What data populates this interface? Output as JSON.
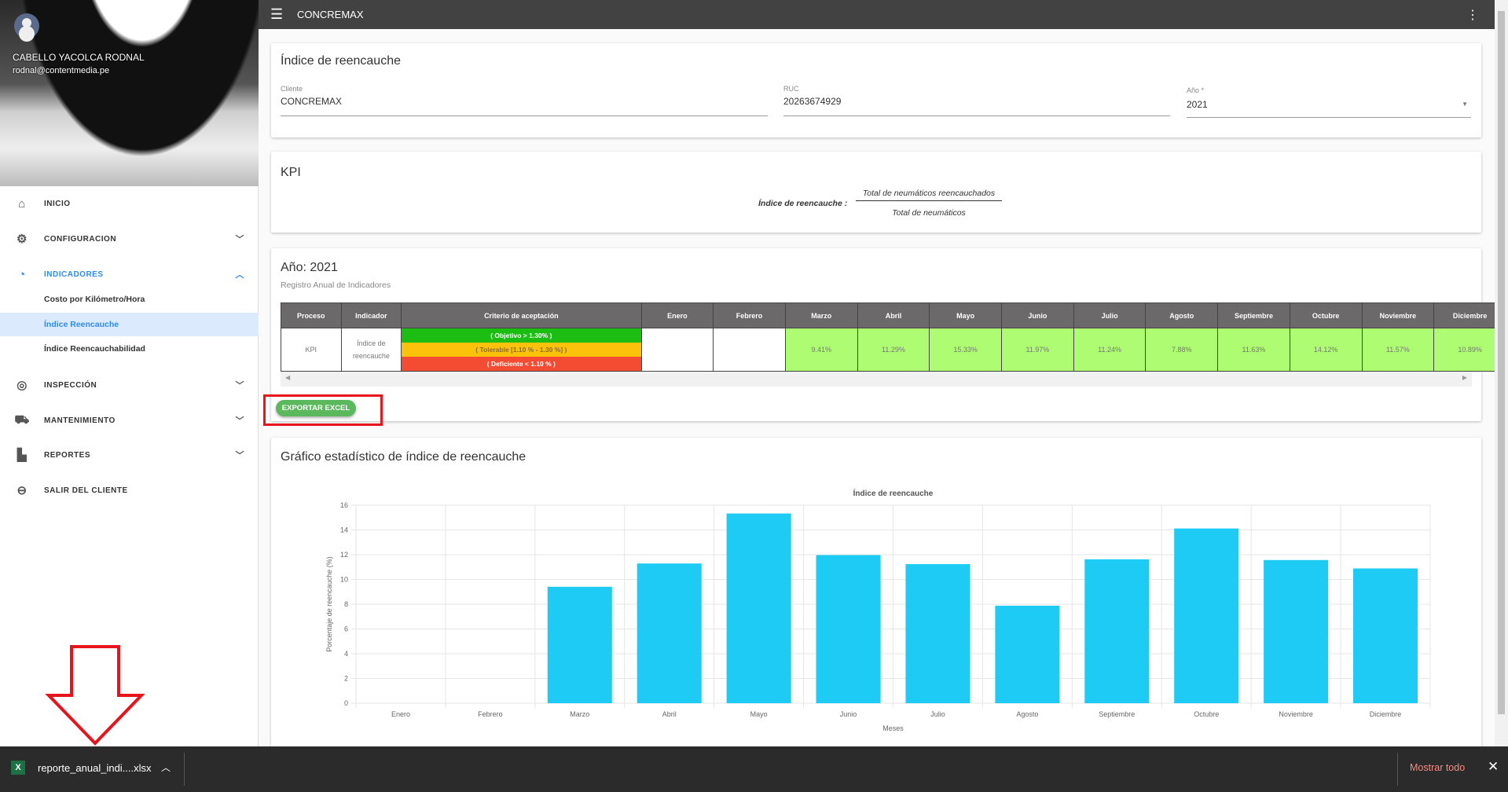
{
  "topbar": {
    "title": "CONCREMAX",
    "menu_icon": "hamburger-icon",
    "more_icon": "more-vert-icon"
  },
  "user": {
    "name": "CABELLO YACOLCA RODNAL",
    "email": "rodnal@contentmedia.pe"
  },
  "sidebar": {
    "items": [
      {
        "label": "INICIO",
        "icon": "home-icon"
      },
      {
        "label": "CONFIGURACION",
        "icon": "gear-icon"
      },
      {
        "label": "INDICADORES",
        "icon": "speedometer-icon"
      },
      {
        "label": "INSPECCIÓN",
        "icon": "sync-icon"
      },
      {
        "label": "MANTENIMIENTO",
        "icon": "car-icon"
      },
      {
        "label": "REPORTES",
        "icon": "bar-chart-icon"
      },
      {
        "label": "SALIR DEL CLIENTE",
        "icon": "exit-icon"
      }
    ],
    "subitems": [
      "Costo por Kilómetro/Hora",
      "Índice Reencauche",
      "Índice Reencauchabilidad"
    ]
  },
  "filters": {
    "title": "Índice de reencauche",
    "cliente_label": "Cliente",
    "cliente": "CONCREMAX",
    "ruc_label": "RUC",
    "ruc": "20263674929",
    "anio_label": "Año *",
    "anio": "2021"
  },
  "kpi": {
    "title": "KPI",
    "formula_label": "Índice de reencauche :",
    "numerator": "Total de neumáticos reencauchados",
    "denominator": "Total de neumáticos"
  },
  "annual": {
    "title": "Año: 2021",
    "subtitle": "Registro Anual de Indicadores",
    "headers": [
      "Proceso",
      "Indicador",
      "Criterio de aceptación",
      "Enero",
      "Febrero",
      "Marzo",
      "Abril",
      "Mayo",
      "Junio",
      "Julio",
      "Agosto",
      "Septiembre",
      "Octubre",
      "Noviembre",
      "Diciembre"
    ],
    "proceso": "KPI",
    "indicador": "Índice de reencauche",
    "criteria": [
      {
        "text": "( Objetivo > 1.30% )",
        "color": "#1dbe14"
      },
      {
        "text": "( Tolerable [1.10 % - 1.30 %] )",
        "color": "#fbc20c"
      },
      {
        "text": "( Deficiente < 1.10 % )",
        "color": "#f44c33"
      }
    ],
    "values": [
      "",
      "",
      "9.41%",
      "11.29%",
      "15.33%",
      "11.97%",
      "11.24%",
      "7.88%",
      "11.63%",
      "14.12%",
      "11.57%",
      "10.89%"
    ],
    "export_label": "EXPORTAR EXCEL"
  },
  "chart_section": {
    "title": "Gráfico estadístico de índice de reencauche"
  },
  "chart_data": {
    "type": "bar",
    "title": "Índice de reencauche",
    "xlabel": "Meses",
    "ylabel": "Porcentaje de reencauche (%)",
    "categories": [
      "Enero",
      "Febrero",
      "Marzo",
      "Abril",
      "Mayo",
      "Junio",
      "Julio",
      "Agosto",
      "Septiembre",
      "Octubre",
      "Noviembre",
      "Diciembre"
    ],
    "values": [
      0,
      0,
      9.41,
      11.29,
      15.33,
      11.97,
      11.24,
      7.88,
      11.63,
      14.12,
      11.57,
      10.89
    ],
    "ylim": [
      0,
      16
    ],
    "yticks": [
      0,
      2,
      4,
      6,
      8,
      10,
      12,
      14,
      16
    ],
    "grid": true,
    "color": "#1ecbf5"
  },
  "download": {
    "filename": "reporte_anual_indi....xlsx",
    "show_all": "Mostrar todo"
  }
}
